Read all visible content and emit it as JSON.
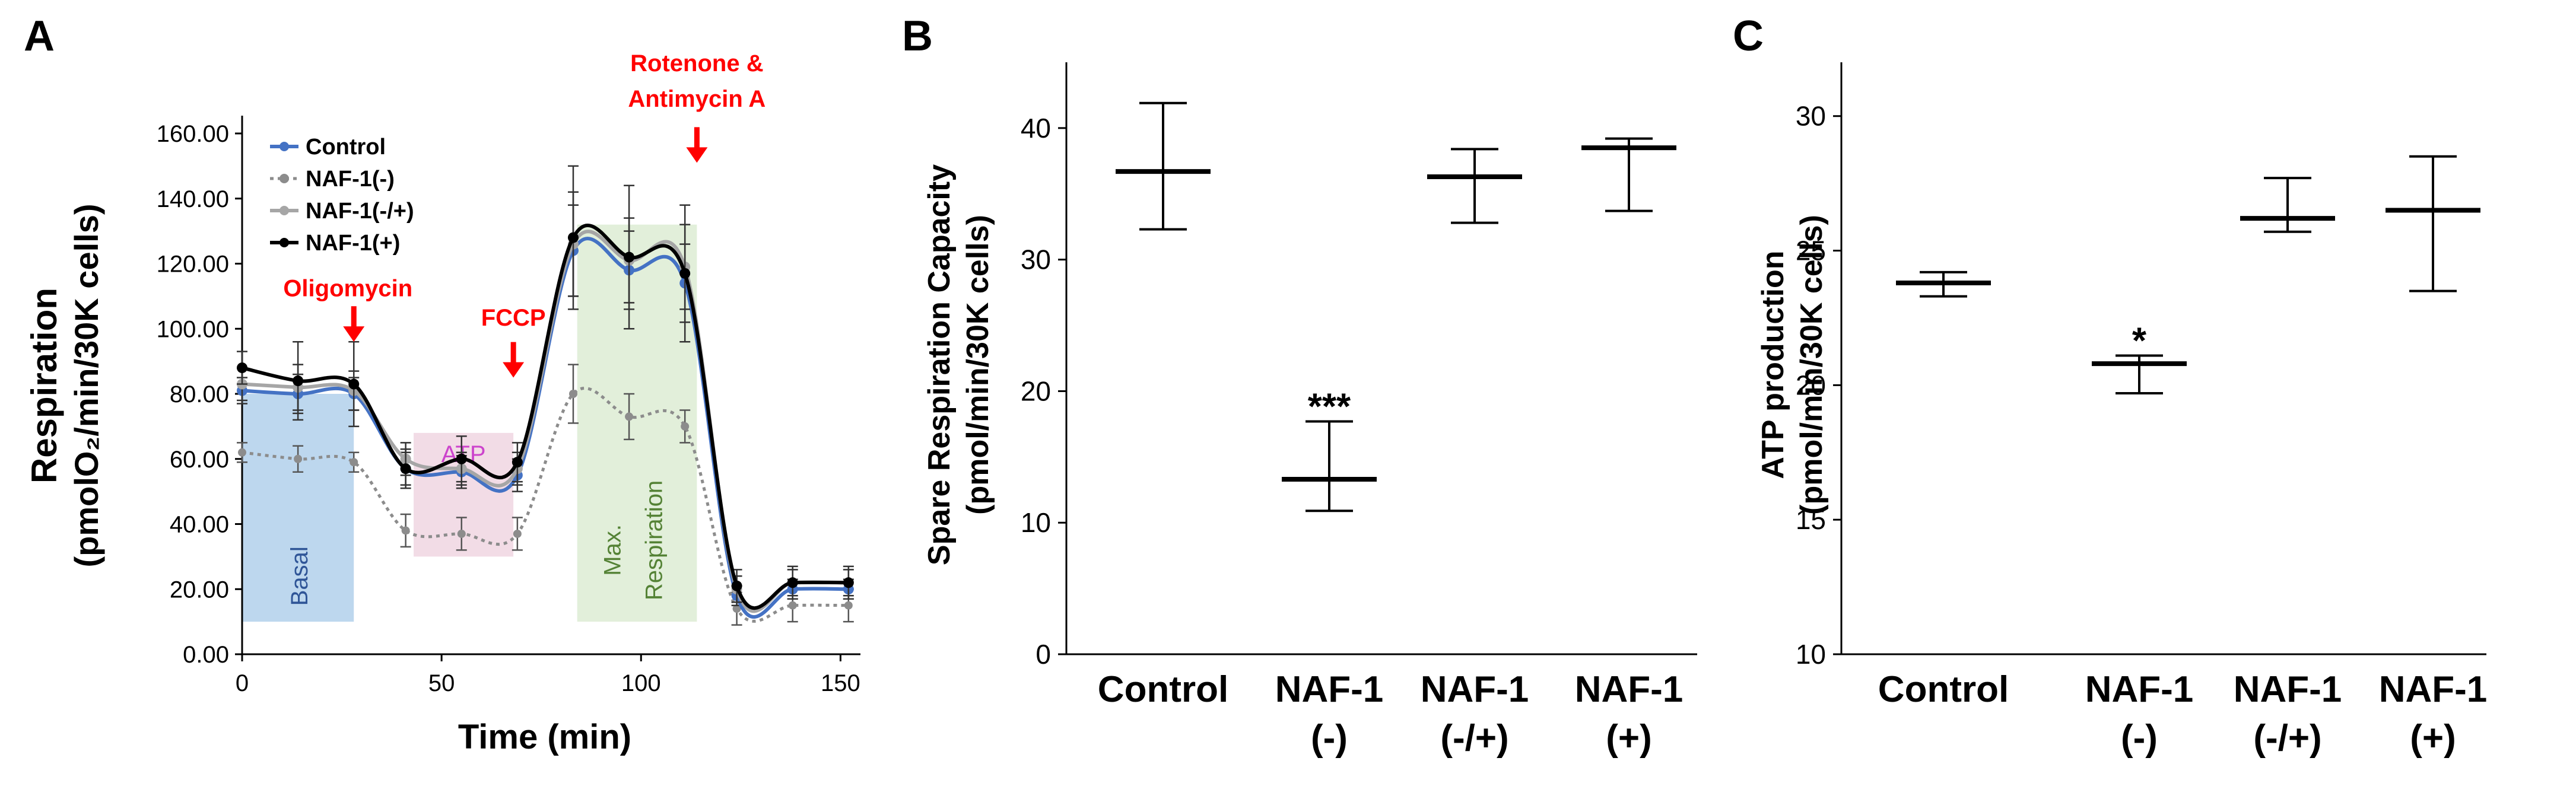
{
  "chart_data": [
    {
      "panel": "A",
      "type": "line",
      "xlabel": "Time (min)",
      "ylabel_line1": "Respiration",
      "ylabel_line2": "(pmolO₂/min/30K cells)",
      "xlim": [
        0,
        155
      ],
      "ylim": [
        0,
        160
      ],
      "x_ticks": [
        "0",
        "50",
        "100",
        "150"
      ],
      "y_ticks": [
        "0.00",
        "20.00",
        "40.00",
        "60.00",
        "80.00",
        "100.00",
        "120.00",
        "140.00",
        "160.00"
      ],
      "x": [
        0,
        14,
        28,
        41,
        55,
        69,
        83,
        97,
        111,
        124,
        138,
        152
      ],
      "series": [
        {
          "name": "Control",
          "color": "#4472c4",
          "style": "solid",
          "values": [
            81,
            80,
            80,
            57,
            56,
            55,
            124,
            118,
            114,
            18,
            20,
            20
          ],
          "err": [
            4,
            6,
            5,
            5,
            5,
            5,
            14,
            12,
            12,
            3,
            3,
            3
          ]
        },
        {
          "name": "NAF-1(-)",
          "color": "#8c8c8c",
          "style": "dotted",
          "values": [
            62,
            60,
            59,
            38,
            37,
            37,
            80,
            73,
            70,
            14,
            15,
            15
          ],
          "err": [
            3,
            4,
            3,
            5,
            5,
            5,
            9,
            7,
            5,
            5,
            5,
            5
          ]
        },
        {
          "name": "NAF-1(-/+)",
          "color": "#a6a6a6",
          "style": "solid",
          "values": [
            83,
            82,
            81,
            60,
            57,
            57,
            126,
            121,
            119,
            20,
            22,
            22
          ],
          "err": [
            5,
            7,
            6,
            5,
            5,
            5,
            16,
            13,
            13,
            4,
            4,
            4
          ]
        },
        {
          "name": "NAF-1(+)",
          "color": "#000000",
          "style": "solid",
          "values": [
            88,
            84,
            83,
            57,
            60,
            59,
            128,
            122,
            117,
            21,
            22,
            22
          ],
          "err": [
            5,
            12,
            13,
            6,
            7,
            6,
            22,
            22,
            21,
            5,
            5,
            5
          ]
        }
      ],
      "shaded_regions": [
        {
          "label": "Basal",
          "x_from": 0,
          "x_to": 28,
          "y_from": 10,
          "y_to": 80,
          "color": "#bdd7ee",
          "text_color": "#2f5597"
        },
        {
          "label": "ATP",
          "x_from": 43,
          "x_to": 68,
          "y_from": 30,
          "y_to": 68,
          "color": "#f2dce6",
          "text_color": "#cc44cc"
        },
        {
          "label_line1": "Max.",
          "label_line2": "Respiration",
          "x_from": 84,
          "x_to": 114,
          "y_from": 10,
          "y_to": 132,
          "color": "#e2efda",
          "text_color": "#548235"
        }
      ],
      "annotations": [
        {
          "text": "Oligomycin",
          "x": 28,
          "color": "#ff0000"
        },
        {
          "text": "FCCP",
          "x": 68,
          "color": "#ff0000"
        },
        {
          "text_line1": "Rotenone &",
          "text_line2": "Antimycin A",
          "x": 114,
          "color": "#ff0000"
        }
      ]
    },
    {
      "panel": "B",
      "type": "scatter",
      "ylabel_line1": "Spare Respiration Capacity",
      "ylabel_line2": "(pmol/min/30K cells)",
      "ylim": [
        0,
        45
      ],
      "y_ticks": [
        0,
        10,
        20,
        30,
        40
      ],
      "categories": [
        {
          "line1": "Control",
          "line2": ""
        },
        {
          "line1": "NAF-1",
          "line2": "(-)"
        },
        {
          "line1": "NAF-1",
          "line2": "(-/+)"
        },
        {
          "line1": "NAF-1",
          "line2": "(+)"
        }
      ],
      "means": [
        36.7,
        13.3,
        36.3,
        38.5
      ],
      "upper": [
        41.9,
        17.7,
        38.4,
        39.2
      ],
      "lower": [
        32.3,
        10.9,
        32.8,
        33.7
      ],
      "significance": [
        "",
        "***",
        "",
        ""
      ]
    },
    {
      "panel": "C",
      "type": "scatter",
      "ylabel_line1": "ATP production",
      "ylabel_line2": "(pmol/min/30K cells)",
      "ylim": [
        10,
        32
      ],
      "y_ticks": [
        10,
        15,
        20,
        25,
        30
      ],
      "categories": [
        {
          "line1": "Control",
          "line2": ""
        },
        {
          "line1": "NAF-1",
          "line2": "(-)"
        },
        {
          "line1": "NAF-1",
          "line2": "(-/+)"
        },
        {
          "line1": "NAF-1",
          "line2": "(+)"
        }
      ],
      "means": [
        23.8,
        20.8,
        26.2,
        26.5
      ],
      "upper": [
        24.2,
        21.1,
        27.7,
        28.5
      ],
      "lower": [
        23.3,
        19.7,
        25.7,
        23.5
      ],
      "significance": [
        "",
        "*",
        "",
        ""
      ]
    }
  ]
}
